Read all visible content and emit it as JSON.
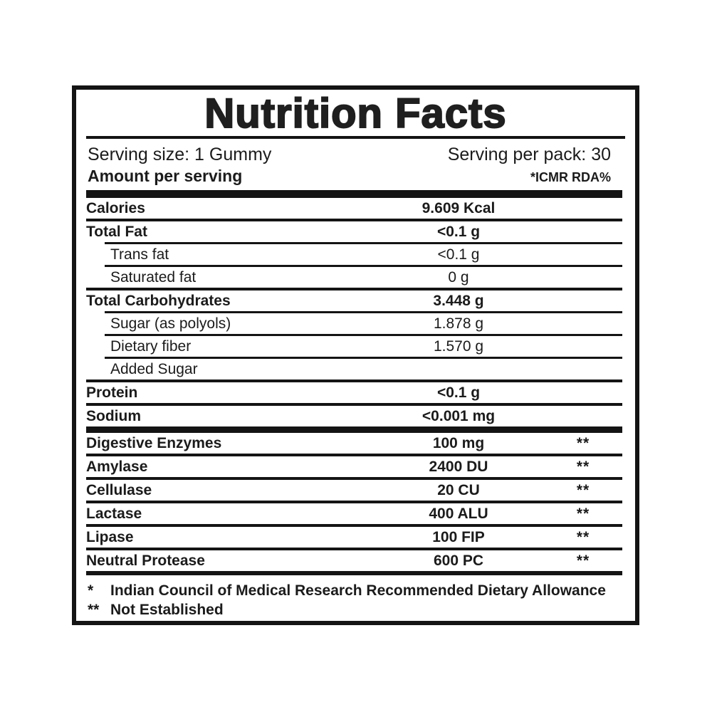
{
  "nutrition": {
    "title": "Nutrition Facts",
    "serving_size": "Serving size: 1 Gummy",
    "serving_per_pack": "Serving per pack: 30",
    "amount_per_serving": "Amount per serving",
    "rda_header": "*ICMR RDA%",
    "rows": [
      {
        "label": "Calories",
        "value": "9.609 Kcal"
      },
      {
        "label": "Total Fat",
        "value": "<0.1 g"
      },
      {
        "label": "Trans fat",
        "value": "<0.1 g"
      },
      {
        "label": "Saturated fat",
        "value": "0 g"
      },
      {
        "label": "Total Carbohydrates",
        "value": "3.448 g"
      },
      {
        "label": "Sugar (as polyols)",
        "value": "1.878 g"
      },
      {
        "label": "Dietary fiber",
        "value": "1.570 g"
      },
      {
        "label": "Added Sugar",
        "value": ""
      },
      {
        "label": "Protein",
        "value": "<0.1 g"
      },
      {
        "label": "Sodium",
        "value": "<0.001 mg"
      },
      {
        "label": "Digestive Enzymes",
        "value": "100 mg",
        "rda": "**"
      },
      {
        "label": "Amylase",
        "value": "2400 DU",
        "rda": "**"
      },
      {
        "label": "Cellulase",
        "value": "20 CU",
        "rda": "**"
      },
      {
        "label": "Lactase",
        "value": "400 ALU",
        "rda": "**"
      },
      {
        "label": "Lipase",
        "value": "100 FIP",
        "rda": "**"
      },
      {
        "label": "Neutral Protease",
        "value": "600 PC",
        "rda": "**"
      }
    ],
    "footnotes": [
      {
        "symbol": "*",
        "text": "Indian Council of Medical Research Recommended Dietary Allowance"
      },
      {
        "symbol": "**",
        "text": "Not Established"
      }
    ],
    "colors": {
      "text": "#1b1b1b",
      "border": "#141414",
      "background": "#ffffff"
    }
  }
}
